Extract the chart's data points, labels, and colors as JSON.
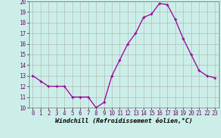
{
  "x": [
    0,
    1,
    2,
    3,
    4,
    5,
    6,
    7,
    8,
    9,
    10,
    11,
    12,
    13,
    14,
    15,
    16,
    17,
    18,
    19,
    20,
    21,
    22,
    23
  ],
  "y": [
    13.0,
    12.5,
    12.0,
    12.0,
    12.0,
    11.0,
    11.0,
    11.0,
    10.0,
    10.5,
    13.0,
    14.5,
    16.0,
    17.0,
    18.5,
    18.8,
    19.8,
    19.7,
    18.3,
    16.5,
    15.0,
    13.5,
    13.0,
    12.8
  ],
  "line_color": "#990099",
  "marker": "+",
  "bg_color": "#cceee8",
  "grid_color": "#aaaaaa",
  "xlabel": "Windchill (Refroidissement éolien,°C)",
  "ylim": [
    10,
    20
  ],
  "xlim": [
    -0.5,
    23.5
  ],
  "yticks": [
    10,
    11,
    12,
    13,
    14,
    15,
    16,
    17,
    18,
    19,
    20
  ],
  "xticks": [
    0,
    1,
    2,
    3,
    4,
    5,
    6,
    7,
    8,
    9,
    10,
    11,
    12,
    13,
    14,
    15,
    16,
    17,
    18,
    19,
    20,
    21,
    22,
    23
  ],
  "tick_fontsize": 5.5,
  "xlabel_fontsize": 6.5,
  "marker_size": 3.5,
  "line_width": 1.0
}
